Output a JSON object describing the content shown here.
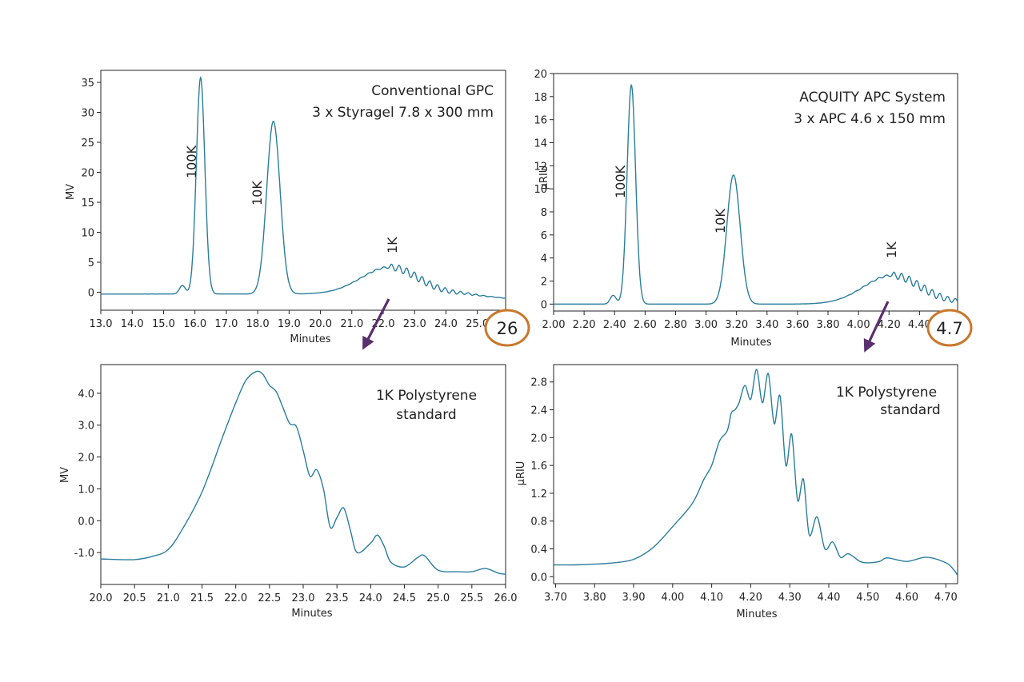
{
  "colors": {
    "trace": "#2b7d9c",
    "axis": "#222222",
    "callout_circle": "#c9782c",
    "arrow": "#5a2f6e"
  },
  "chart_data": [
    {
      "id": "top-left",
      "type": "line",
      "title_lines": [
        "Conventional GPC",
        "3 x Styragel 7.8 x 300 mm"
      ],
      "xlabel": "Minutes",
      "ylabel": "MV",
      "xlim": [
        13.0,
        25.9
      ],
      "ylim": [
        -3,
        37
      ],
      "xticks": [
        13.0,
        14.0,
        15.0,
        16.0,
        17.0,
        18.0,
        19.0,
        20.0,
        21.0,
        22.0,
        23.0,
        24.0,
        25.0
      ],
      "xtick_labels": [
        "13.0",
        "14.0",
        "15.0",
        "16.0",
        "17.0",
        "18.0",
        "19.0",
        "20.0",
        "21.0",
        "22.0",
        "23.0",
        "24.0",
        "25.0"
      ],
      "yticks": [
        0,
        5,
        10,
        15,
        20,
        25,
        30,
        35
      ],
      "ytick_labels": [
        "0",
        "5",
        "10",
        "15",
        "20",
        "25",
        "30",
        "35"
      ],
      "baseline": -0.3,
      "endpoint": -1.0,
      "peaks": [
        {
          "label": "100K",
          "x": 16.18,
          "y": 35.8
        },
        {
          "label": "10K",
          "x": 18.5,
          "y": 28.5
        },
        {
          "label": "1K",
          "x": 22.2,
          "y": 4.9
        }
      ],
      "callout": "26"
    },
    {
      "id": "top-right",
      "type": "line",
      "title_lines": [
        "ACQUITY APC  System",
        "3 x APC  4.6 x 150 mm"
      ],
      "xlabel": "Minutes",
      "ylabel": "µRIU",
      "xlim": [
        2.0,
        4.65
      ],
      "ylim": [
        -0.6,
        20
      ],
      "xticks": [
        2.0,
        2.2,
        2.4,
        2.6,
        2.8,
        3.0,
        3.2,
        3.4,
        3.6,
        3.8,
        4.0,
        4.2,
        4.4
      ],
      "xtick_labels": [
        "2.00",
        "2.20",
        "2.40",
        "2.60",
        "2.80",
        "3.00",
        "3.20",
        "3.40",
        "3.60",
        "3.80",
        "4.00",
        "4.20",
        "4.40"
      ],
      "yticks": [
        0,
        2,
        4,
        6,
        8,
        10,
        12,
        14,
        16,
        18,
        20
      ],
      "ytick_labels": [
        "0",
        "2",
        "4",
        "6",
        "8",
        "10",
        "12",
        "14",
        "16",
        "18",
        "20"
      ],
      "baseline": 0.0,
      "endpoint": 0.1,
      "peaks": [
        {
          "label": "100K",
          "x": 2.51,
          "y": 19.0
        },
        {
          "label": "10K",
          "x": 3.18,
          "y": 11.2
        },
        {
          "label": "1K",
          "x": 4.22,
          "y": 2.9
        }
      ],
      "callout": "4.7"
    },
    {
      "id": "bottom-left",
      "type": "line",
      "title_lines": [
        "1K Polystyrene",
        "standard"
      ],
      "xlabel": "Minutes",
      "ylabel": "MV",
      "xlim": [
        20.0,
        26.0
      ],
      "ylim": [
        -2.0,
        4.9
      ],
      "xticks": [
        20.0,
        20.5,
        21.0,
        21.5,
        22.0,
        22.5,
        23.0,
        23.5,
        24.0,
        24.5,
        25.0,
        25.5,
        26.0
      ],
      "xtick_labels": [
        "20.0",
        "20.5",
        "21.0",
        "21.5",
        "22.0",
        "22.5",
        "23.0",
        "23.5",
        "24.0",
        "24.5",
        "25.0",
        "25.5",
        "26.0"
      ],
      "yticks": [
        -1.0,
        0.0,
        1.0,
        2.0,
        3.0,
        4.0
      ],
      "ytick_labels": [
        "-1.0",
        "0.0",
        "1.0",
        "2.0",
        "3.0",
        "4.0"
      ],
      "points": [
        [
          20.0,
          -1.2
        ],
        [
          20.5,
          -1.22
        ],
        [
          20.8,
          -1.1
        ],
        [
          21.0,
          -0.9
        ],
        [
          21.2,
          -0.3
        ],
        [
          21.5,
          0.9
        ],
        [
          21.8,
          2.6
        ],
        [
          22.0,
          3.7
        ],
        [
          22.15,
          4.4
        ],
        [
          22.3,
          4.68
        ],
        [
          22.4,
          4.6
        ],
        [
          22.5,
          4.25
        ],
        [
          22.6,
          4.05
        ],
        [
          22.7,
          3.55
        ],
        [
          22.8,
          3.05
        ],
        [
          22.9,
          2.95
        ],
        [
          23.0,
          2.2
        ],
        [
          23.1,
          1.4
        ],
        [
          23.2,
          1.6
        ],
        [
          23.3,
          1.0
        ],
        [
          23.4,
          -0.2
        ],
        [
          23.5,
          0.1
        ],
        [
          23.6,
          0.4
        ],
        [
          23.7,
          -0.3
        ],
        [
          23.8,
          -1.0
        ],
        [
          24.0,
          -0.7
        ],
        [
          24.1,
          -0.45
        ],
        [
          24.2,
          -0.8
        ],
        [
          24.3,
          -1.3
        ],
        [
          24.5,
          -1.45
        ],
        [
          24.7,
          -1.15
        ],
        [
          24.8,
          -1.1
        ],
        [
          25.0,
          -1.55
        ],
        [
          25.3,
          -1.6
        ],
        [
          25.5,
          -1.6
        ],
        [
          25.7,
          -1.5
        ],
        [
          25.9,
          -1.65
        ],
        [
          26.0,
          -1.68
        ]
      ]
    },
    {
      "id": "bottom-right",
      "type": "line",
      "title_lines": [
        "1K Polystyrene",
        "standard"
      ],
      "xlabel": "Minutes",
      "ylabel": "µRIU",
      "xlim": [
        3.695,
        4.73
      ],
      "ylim": [
        -0.1,
        3.05
      ],
      "xticks": [
        3.7,
        3.8,
        3.9,
        4.0,
        4.1,
        4.2,
        4.3,
        4.4,
        4.5,
        4.6,
        4.7
      ],
      "xtick_labels": [
        "3.70",
        "3.80",
        "3.90",
        "4.00",
        "4.10",
        "4.20",
        "4.30",
        "4.40",
        "4.50",
        "4.60",
        "4.70"
      ],
      "yticks": [
        0.0,
        0.4,
        0.8,
        1.2,
        1.6,
        2.0,
        2.4,
        2.8
      ],
      "ytick_labels": [
        "0.0",
        "0.4",
        "0.8",
        "1.2",
        "1.6",
        "2.0",
        "2.4",
        "2.8"
      ],
      "points": [
        [
          3.695,
          0.17
        ],
        [
          3.75,
          0.17
        ],
        [
          3.8,
          0.18
        ],
        [
          3.85,
          0.2
        ],
        [
          3.9,
          0.25
        ],
        [
          3.95,
          0.42
        ],
        [
          4.0,
          0.72
        ],
        [
          4.05,
          1.05
        ],
        [
          4.08,
          1.4
        ],
        [
          4.1,
          1.6
        ],
        [
          4.12,
          1.95
        ],
        [
          4.14,
          2.1
        ],
        [
          4.15,
          2.35
        ],
        [
          4.16,
          2.4
        ],
        [
          4.17,
          2.5
        ],
        [
          4.185,
          2.75
        ],
        [
          4.2,
          2.55
        ],
        [
          4.215,
          2.98
        ],
        [
          4.23,
          2.5
        ],
        [
          4.245,
          2.92
        ],
        [
          4.26,
          2.2
        ],
        [
          4.275,
          2.6
        ],
        [
          4.29,
          1.6
        ],
        [
          4.305,
          2.05
        ],
        [
          4.32,
          1.1
        ],
        [
          4.335,
          1.4
        ],
        [
          4.35,
          0.6
        ],
        [
          4.37,
          0.86
        ],
        [
          4.39,
          0.4
        ],
        [
          4.41,
          0.5
        ],
        [
          4.43,
          0.28
        ],
        [
          4.45,
          0.33
        ],
        [
          4.48,
          0.22
        ],
        [
          4.5,
          0.2
        ],
        [
          4.53,
          0.22
        ],
        [
          4.55,
          0.27
        ],
        [
          4.6,
          0.22
        ],
        [
          4.65,
          0.28
        ],
        [
          4.7,
          0.2
        ],
        [
          4.72,
          0.1
        ],
        [
          4.73,
          0.02
        ]
      ]
    }
  ]
}
